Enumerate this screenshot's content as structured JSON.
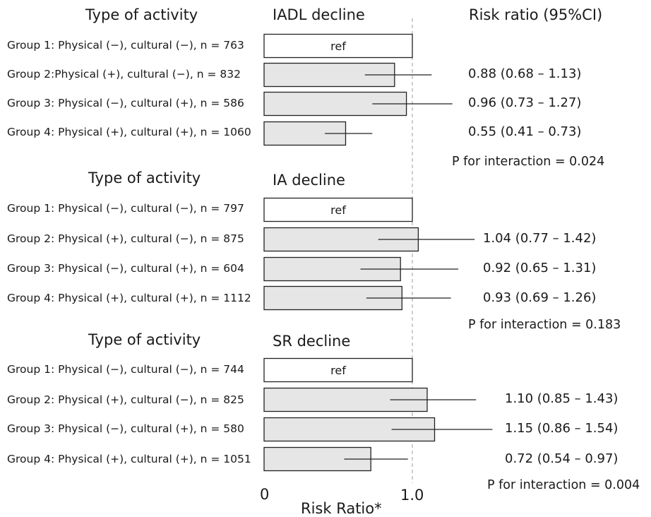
{
  "chart_data": {
    "type": "bar",
    "xlabel": "Risk Ratio*",
    "xlim": [
      0,
      1.2
    ],
    "ticks": [
      {
        "value": 0,
        "label": "0"
      },
      {
        "value": 1.0,
        "label": "1.0"
      }
    ],
    "column_headers": {
      "activity": "Type of activity",
      "risk_ratio": "Risk ratio (95%CI)"
    },
    "panels": [
      {
        "outcome": "IADL decline",
        "activity_header": "Type of activity",
        "p_interaction": "P for interaction = 0.024",
        "groups": [
          {
            "label": "Group 1: Physical (−), cultural (−), n = 763",
            "value": 1.0,
            "ref": true,
            "ref_label": "ref",
            "rr_text": ""
          },
          {
            "label": "Group 2:Physical (+), cultural (−), n = 832",
            "value": 0.88,
            "ci": [
              0.68,
              1.13
            ],
            "ref": false,
            "rr_text": "0.88 (0.68 – 1.13)"
          },
          {
            "label": "Group 3: Physical (−), cultural (+), n = 586",
            "value": 0.96,
            "ci": [
              0.73,
              1.27
            ],
            "ref": false,
            "rr_text": "0.96 (0.73 – 1.27)"
          },
          {
            "label": "Group 4: Physical (+), cultural (+), n = 1060",
            "value": 0.55,
            "ci": [
              0.41,
              0.73
            ],
            "ref": false,
            "rr_text": "0.55 (0.41 – 0.73)"
          }
        ]
      },
      {
        "outcome": "IA decline",
        "activity_header": "Type of activity",
        "p_interaction": "P for interaction = 0.183",
        "groups": [
          {
            "label": "Group 1: Physical (−), cultural (−), n = 797",
            "value": 1.0,
            "ref": true,
            "ref_label": "ref",
            "rr_text": ""
          },
          {
            "label": "Group 2: Physical (+), cultural (−), n = 875",
            "value": 1.04,
            "ci": [
              0.77,
              1.42
            ],
            "ref": false,
            "rr_text": "1.04 (0.77 – 1.42)"
          },
          {
            "label": "Group 3: Physical (−), cultural (+), n = 604",
            "value": 0.92,
            "ci": [
              0.65,
              1.31
            ],
            "ref": false,
            "rr_text": "0.92 (0.65 – 1.31)"
          },
          {
            "label": "Group 4: Physical (+), cultural (+), n = 1112",
            "value": 0.93,
            "ci": [
              0.69,
              1.26
            ],
            "ref": false,
            "rr_text": "0.93 (0.69 – 1.26)"
          }
        ]
      },
      {
        "outcome": "SR decline",
        "activity_header": "Type of activity",
        "p_interaction": "P for interaction = 0.004",
        "groups": [
          {
            "label": "Group 1: Physical (−), cultural (−), n = 744",
            "value": 1.0,
            "ref": true,
            "ref_label": "ref",
            "rr_text": ""
          },
          {
            "label": "Group 2: Physical (+), cultural (−), n = 825",
            "value": 1.1,
            "ci": [
              0.85,
              1.43
            ],
            "ref": false,
            "rr_text": "1.10 (0.85 – 1.43)"
          },
          {
            "label": "Group 3: Physical (−), cultural (+), n = 580",
            "value": 1.15,
            "ci": [
              0.86,
              1.54
            ],
            "ref": false,
            "rr_text": "1.15 (0.86 – 1.54)"
          },
          {
            "label": "Group 4: Physical (+), cultural (+), n = 1051",
            "value": 0.72,
            "ci": [
              0.54,
              0.97
            ],
            "ref": false,
            "rr_text": "0.72 (0.54 – 0.97)"
          }
        ]
      }
    ],
    "colors": {
      "bar_fill": "#e6e6e6",
      "ref_fill": "#ffffff",
      "bar_stroke": "#222222",
      "ci_line": "#222222",
      "reference_line": "#b3b3b3"
    }
  }
}
